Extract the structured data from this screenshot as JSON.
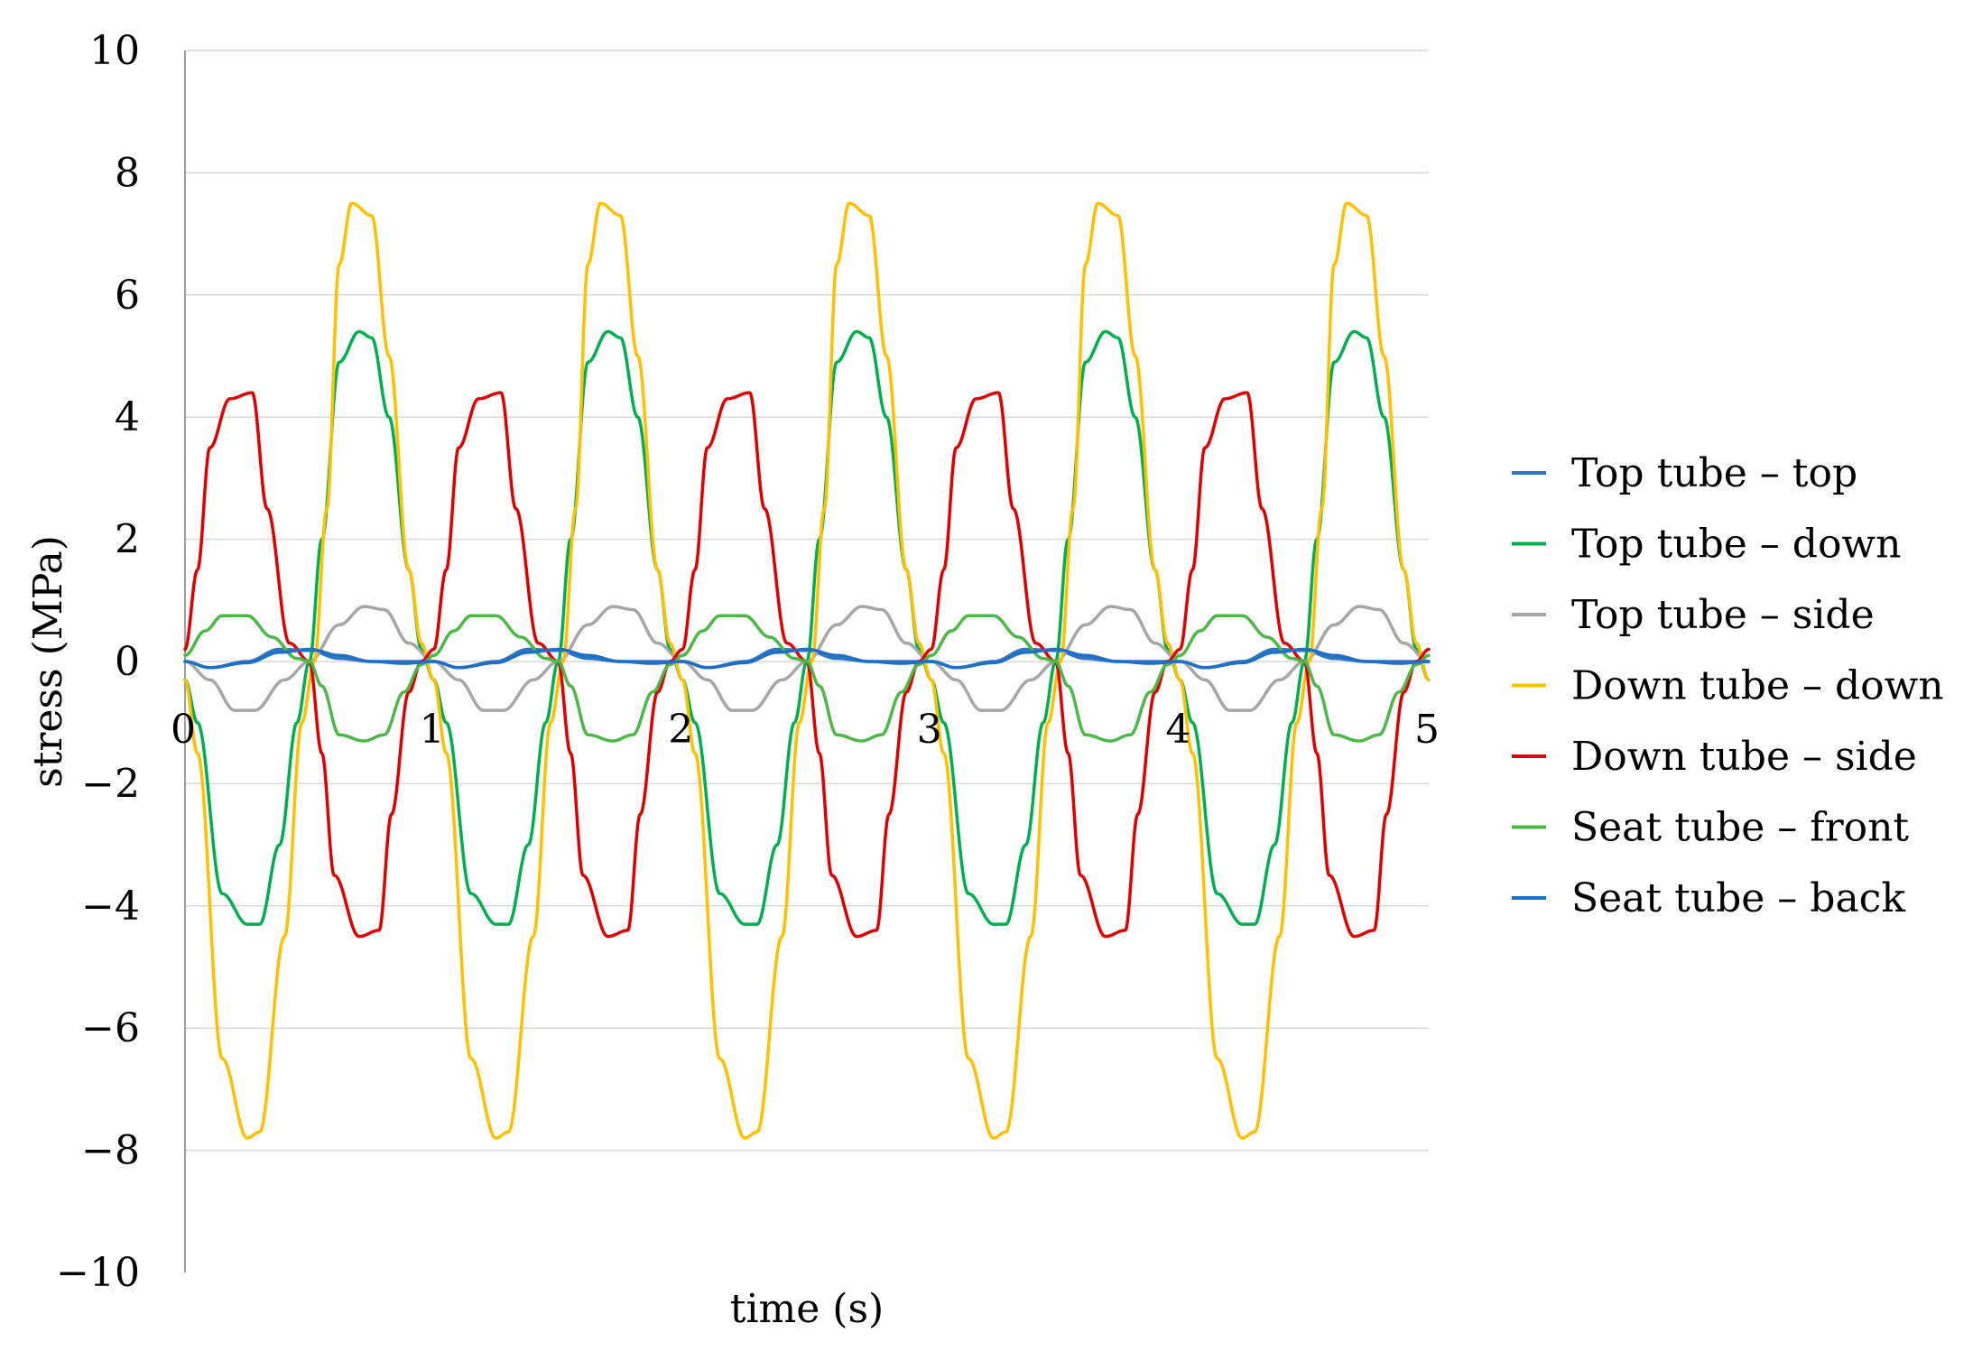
{
  "chart_data": {
    "type": "line",
    "title": "",
    "xlabel": "time (s)",
    "ylabel": "stress (MPa)",
    "xlim": [
      0,
      5
    ],
    "ylim": [
      -10,
      10
    ],
    "x_ticks": [
      0,
      1,
      2,
      3,
      4,
      5
    ],
    "y_ticks": [
      10,
      8,
      6,
      4,
      2,
      0,
      -2,
      -4,
      -6,
      -8,
      -10
    ],
    "y_tick_labels": [
      "10",
      "8",
      "6",
      "4",
      "2",
      "0",
      "−2",
      "−4",
      "−6",
      "−8",
      "−10"
    ],
    "x_tick_labels": [
      "0",
      "1",
      "2",
      "3",
      "4",
      "5"
    ],
    "grid": "horizontal",
    "legend_position": "right",
    "period_s": 1,
    "series": [
      {
        "name": "Top tube – top",
        "color": "#2e75c6",
        "x": [
          0,
          0.1,
          0.25,
          0.38,
          0.5,
          0.62,
          0.75,
          0.88,
          1.0
        ],
        "y": [
          0,
          -0.1,
          0,
          0.2,
          0.18,
          0.05,
          0,
          0,
          0
        ]
      },
      {
        "name": "Top tube – down",
        "color": "#00b050",
        "x": [
          0,
          0.05,
          0.15,
          0.25,
          0.3,
          0.38,
          0.45,
          0.5,
          0.55,
          0.62,
          0.7,
          0.75,
          0.82,
          0.9,
          0.95,
          1.0
        ],
        "y": [
          -0.3,
          -1.0,
          -3.8,
          -4.3,
          -4.3,
          -3.0,
          -1.0,
          0,
          2.0,
          4.9,
          5.4,
          5.3,
          4.0,
          1.5,
          0.2,
          -0.3
        ]
      },
      {
        "name": "Top tube – side",
        "color": "#a6a6a6",
        "x": [
          0,
          0.1,
          0.2,
          0.28,
          0.4,
          0.5,
          0.62,
          0.72,
          0.8,
          0.9,
          1.0
        ],
        "y": [
          0,
          -0.3,
          -0.8,
          -0.8,
          -0.3,
          0,
          0.6,
          0.9,
          0.85,
          0.3,
          0
        ]
      },
      {
        "name": "Down tube – down",
        "color": "#ffc000",
        "x": [
          0,
          0.05,
          0.15,
          0.25,
          0.3,
          0.4,
          0.47,
          0.52,
          0.57,
          0.62,
          0.67,
          0.75,
          0.82,
          0.9,
          0.95,
          1.0
        ],
        "y": [
          -0.3,
          -1.5,
          -6.5,
          -7.8,
          -7.7,
          -4.5,
          -1.0,
          0,
          2.5,
          6.5,
          7.5,
          7.3,
          5.0,
          1.5,
          0.3,
          -0.3
        ]
      },
      {
        "name": "Down tube – side",
        "color": "#e00000",
        "x": [
          0,
          0.05,
          0.1,
          0.18,
          0.27,
          0.33,
          0.42,
          0.5,
          0.55,
          0.6,
          0.7,
          0.78,
          0.83,
          0.9,
          0.95,
          1.0
        ],
        "y": [
          0.2,
          1.5,
          3.5,
          4.3,
          4.4,
          2.5,
          0.3,
          0,
          -1.5,
          -3.5,
          -4.5,
          -4.4,
          -2.5,
          -0.5,
          0,
          0.2
        ]
      },
      {
        "name": "Seat tube – front",
        "color": "#4cb847",
        "x": [
          0,
          0.08,
          0.15,
          0.25,
          0.35,
          0.45,
          0.5,
          0.55,
          0.62,
          0.72,
          0.8,
          0.88,
          0.95,
          1.0
        ],
        "y": [
          0.1,
          0.5,
          0.75,
          0.75,
          0.4,
          0.05,
          0,
          -0.4,
          -1.2,
          -1.3,
          -1.2,
          -0.5,
          -0.05,
          0.1
        ]
      },
      {
        "name": "Seat tube – back",
        "color": "#1f6fc6",
        "x": [
          0,
          0.1,
          0.25,
          0.38,
          0.5,
          0.62,
          0.75,
          0.88,
          1.0
        ],
        "y": [
          0,
          -0.1,
          -0.02,
          0.15,
          0.2,
          0.1,
          0,
          -0.03,
          0
        ]
      }
    ]
  }
}
